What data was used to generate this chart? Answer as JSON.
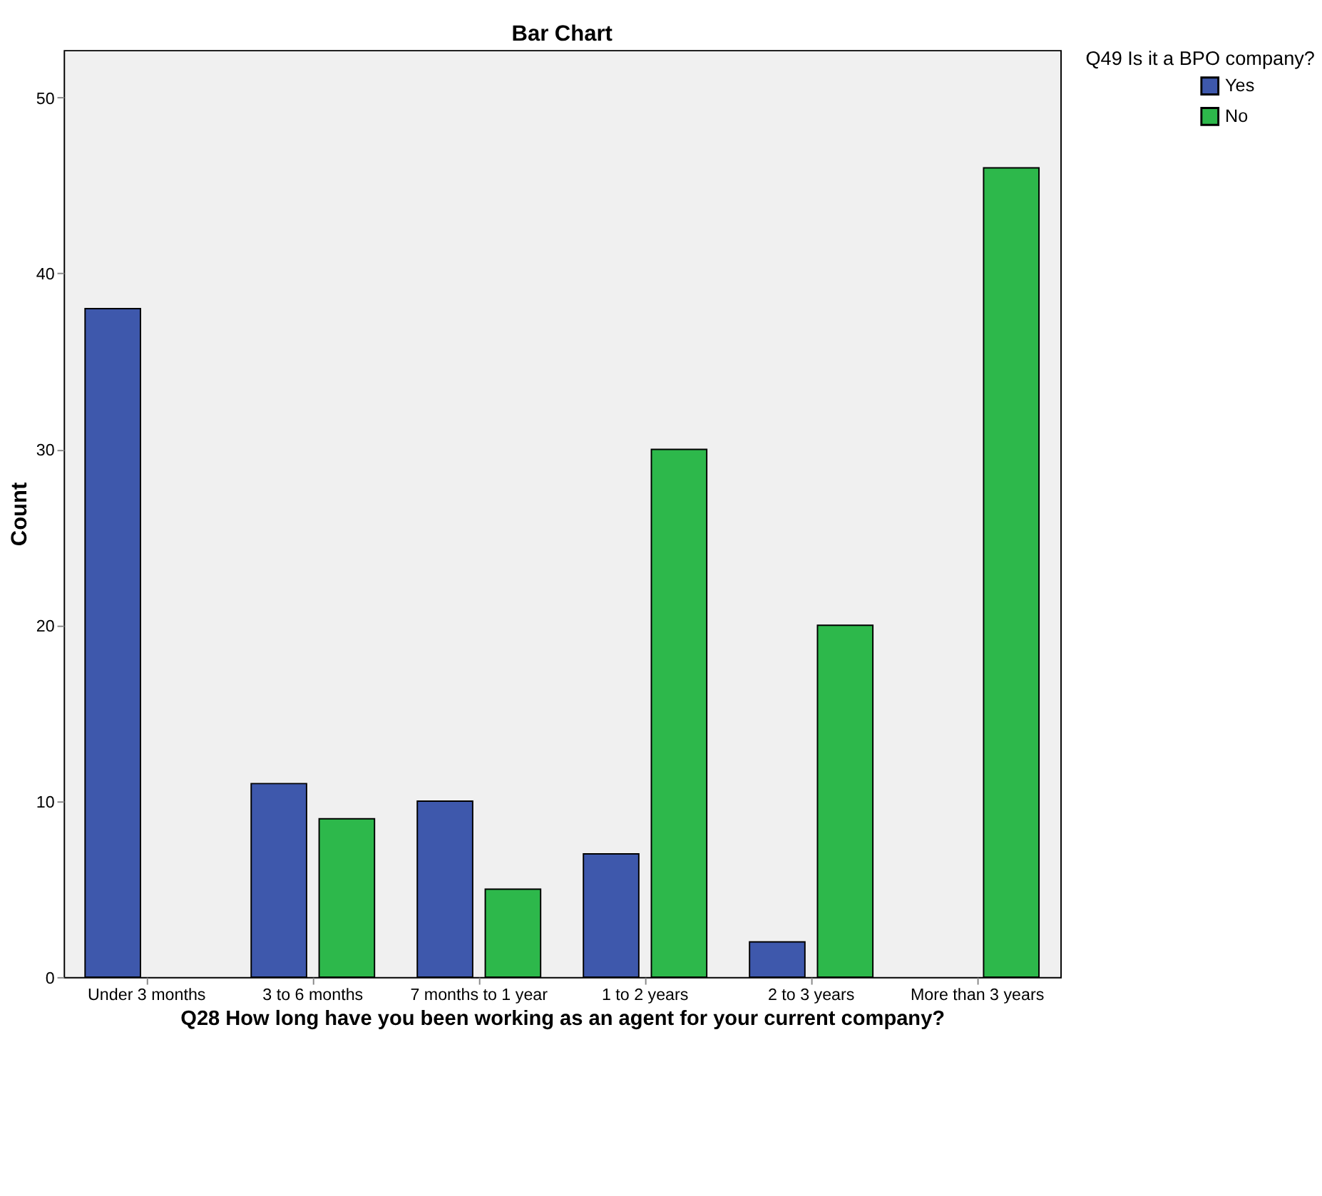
{
  "chart_data": {
    "type": "bar",
    "title": "Bar Chart",
    "xlabel": "Q28 How long have you been working as an agent for your current company?",
    "ylabel": "Count",
    "legend_title": "Q49 Is it a BPO company?",
    "categories": [
      "Under 3 months",
      "3 to 6 months",
      "7 months to 1 year",
      "1 to 2 years",
      "2 to 3 years",
      "More than 3 years"
    ],
    "series": [
      {
        "name": "Yes",
        "color": "#3e58ac",
        "values": [
          38,
          11,
          10,
          7,
          2,
          null
        ]
      },
      {
        "name": "No",
        "color": "#2db84b",
        "values": [
          null,
          9,
          5,
          30,
          20,
          46
        ]
      }
    ],
    "ylim": [
      0,
      52.7
    ],
    "yticks": [
      0,
      10,
      20,
      30,
      40,
      50
    ],
    "grid": false,
    "legend": "top right"
  }
}
